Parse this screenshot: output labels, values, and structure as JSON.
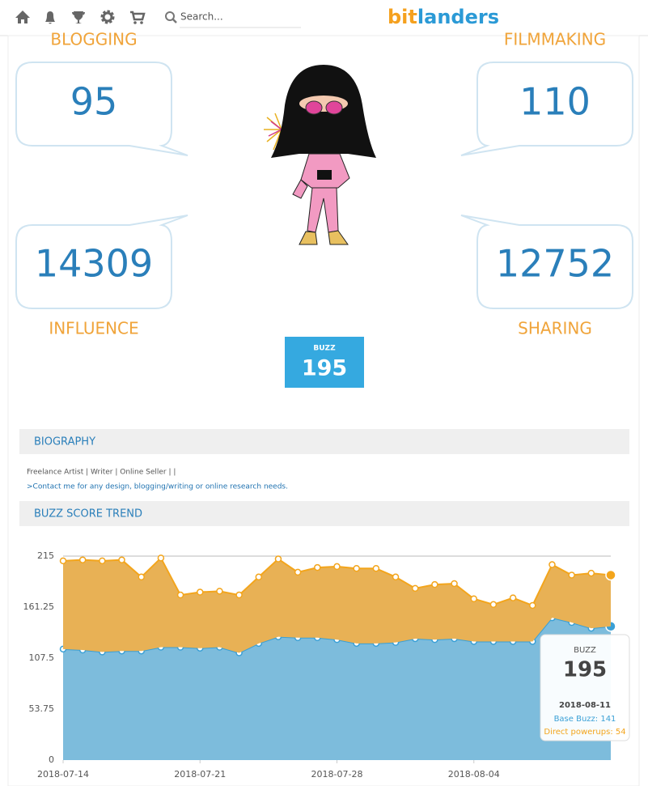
{
  "nav": {
    "search_placeholder": "Search...",
    "logo": [
      "bit",
      "landers"
    ]
  },
  "stats": {
    "blogging": {
      "label": "BLOGGING",
      "value": 95
    },
    "filmmaking": {
      "label": "FILMMAKING",
      "value": 110
    },
    "influence": {
      "label": "INFLUENCE",
      "value": 14309
    },
    "sharing": {
      "label": "SHARING",
      "value": 12752
    }
  },
  "buzz": {
    "label": "BUZZ",
    "value": 195
  },
  "biography": {
    "heading": "BIOGRAPHY",
    "lines": [
      "Freelance Artist | Writer | Online Seller | |",
      ">Contact me for any design, blogging/writing or online research needs."
    ]
  },
  "trend_heading": "BUZZ SCORE TREND",
  "chart_data": {
    "type": "area",
    "stacked": true,
    "x": [
      "2018-07-14",
      "2018-07-15",
      "2018-07-16",
      "2018-07-17",
      "2018-07-18",
      "2018-07-19",
      "2018-07-20",
      "2018-07-21",
      "2018-07-22",
      "2018-07-23",
      "2018-07-24",
      "2018-07-25",
      "2018-07-26",
      "2018-07-27",
      "2018-07-28",
      "2018-07-29",
      "2018-07-30",
      "2018-07-31",
      "2018-08-01",
      "2018-08-02",
      "2018-08-03",
      "2018-08-04",
      "2018-08-05",
      "2018-08-06",
      "2018-08-07",
      "2018-08-08",
      "2018-08-09",
      "2018-08-10",
      "2018-08-11"
    ],
    "xticks": [
      "2018-07-14",
      "2018-07-21",
      "2018-07-28",
      "2018-08-04"
    ],
    "series": [
      {
        "name": "Base Buzz",
        "color": "#3aa0d6",
        "fill": "#7dbcdc",
        "values": [
          117,
          116,
          114,
          115,
          115,
          119,
          119,
          118,
          119,
          113,
          123,
          130,
          129,
          129,
          127,
          123,
          123,
          124,
          128,
          127,
          128,
          125,
          125,
          125,
          125,
          150,
          145,
          139,
          141
        ]
      },
      {
        "name": "Direct powerups",
        "color": "#f3a51c",
        "fill": "#e8b155",
        "values": [
          93,
          95,
          96,
          96,
          78,
          94,
          55,
          59,
          59,
          61,
          70,
          82,
          69,
          74,
          77,
          79,
          79,
          69,
          53,
          58,
          58,
          45,
          39,
          46,
          38,
          56,
          50,
          58,
          54
        ]
      }
    ],
    "ylim": [
      0,
      215
    ],
    "yticks": [
      0,
      53.75,
      107.5,
      161.25,
      215
    ],
    "tooltip": {
      "title": "BUZZ",
      "value": 195,
      "date": "2018-08-11",
      "lines": [
        "Base Buzz: 141",
        "Direct powerups: 54"
      ]
    }
  }
}
